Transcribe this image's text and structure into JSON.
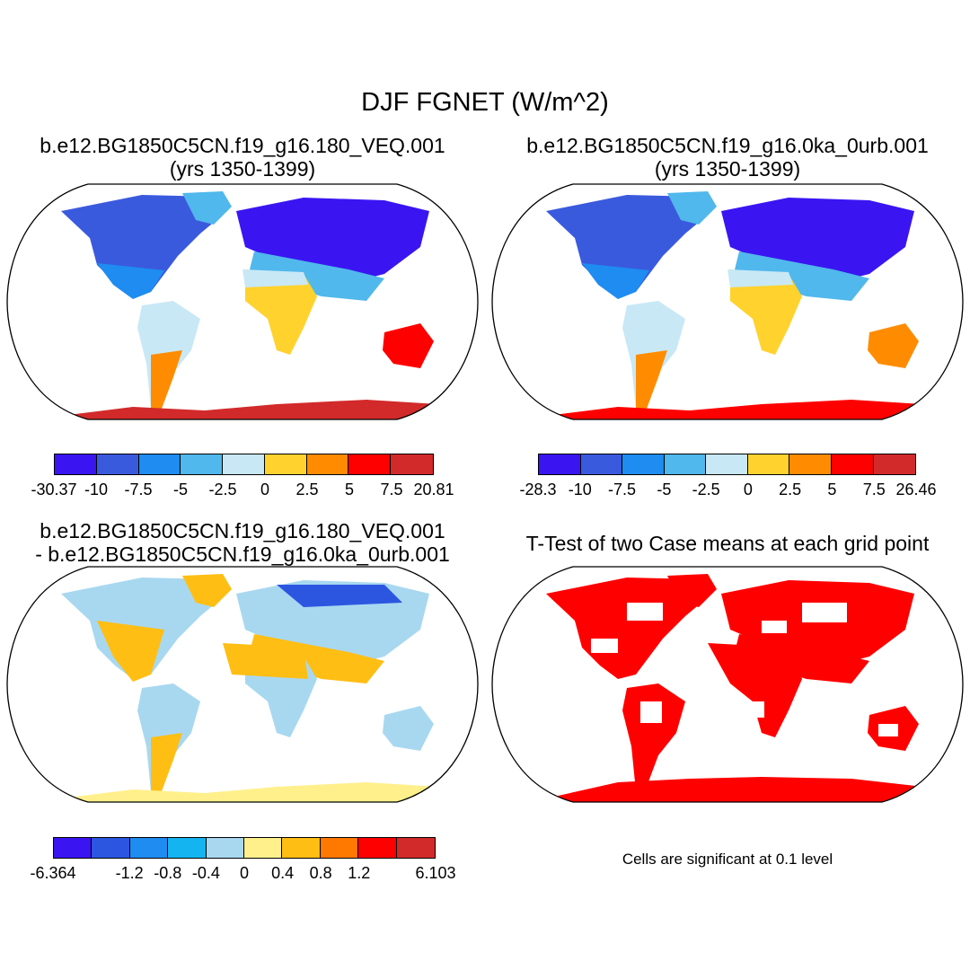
{
  "title": "DJF FGNET (W/m^2)",
  "panels": [
    {
      "id": "case1",
      "title_lines": [
        "b.e12.BG1850C5CN.f19_g16.180_VEQ.001",
        "(yrs 1350-1399)"
      ],
      "colorbar": {
        "colors": [
          "#3a15f2",
          "#3a5ade",
          "#1e8cf0",
          "#50b8ec",
          "#c8e8f6",
          "#ffd22e",
          "#ff8c00",
          "#ff0000",
          "#d22a2a"
        ],
        "labels": [
          "-30.37",
          "-10",
          "-7.5",
          "-5",
          "-2.5",
          "0",
          "2.5",
          "5",
          "7.5",
          "20.81"
        ]
      }
    },
    {
      "id": "case2",
      "title_lines": [
        "b.e12.BG1850C5CN.f19_g16.0ka_0urb.001",
        "(yrs 1350-1399)"
      ],
      "colorbar": {
        "colors": [
          "#3a15f2",
          "#3a5ade",
          "#1e8cf0",
          "#50b8ec",
          "#c8e8f6",
          "#ffd22e",
          "#ff8c00",
          "#ff0000",
          "#d22a2a"
        ],
        "labels": [
          "-28.3",
          "-10",
          "-7.5",
          "-5",
          "-2.5",
          "0",
          "2.5",
          "5",
          "7.5",
          "26.46"
        ]
      }
    },
    {
      "id": "diff",
      "title_lines": [
        "b.e12.BG1850C5CN.f19_g16.180_VEQ.001",
        "- b.e12.BG1850C5CN.f19_g16.0ka_0urb.001"
      ],
      "colorbar": {
        "colors": [
          "#3a15f2",
          "#2c56e0",
          "#1e8cf0",
          "#14b4f0",
          "#a8d8f0",
          "#fff08c",
          "#ffbe14",
          "#ff7800",
          "#ff0000",
          "#d22a2a"
        ],
        "labels": [
          "-6.364",
          "-1.2",
          "-0.8",
          "-0.4",
          "0",
          "0.4",
          "0.8",
          "1.2",
          "6.103"
        ],
        "label_slots": [
          0,
          2,
          3,
          4,
          5,
          6,
          7,
          8,
          10
        ]
      }
    },
    {
      "id": "ttest",
      "title_lines": [
        "T-Test of two Case means at each grid point"
      ],
      "note": "Cells are significant at 0.1 level"
    }
  ]
}
